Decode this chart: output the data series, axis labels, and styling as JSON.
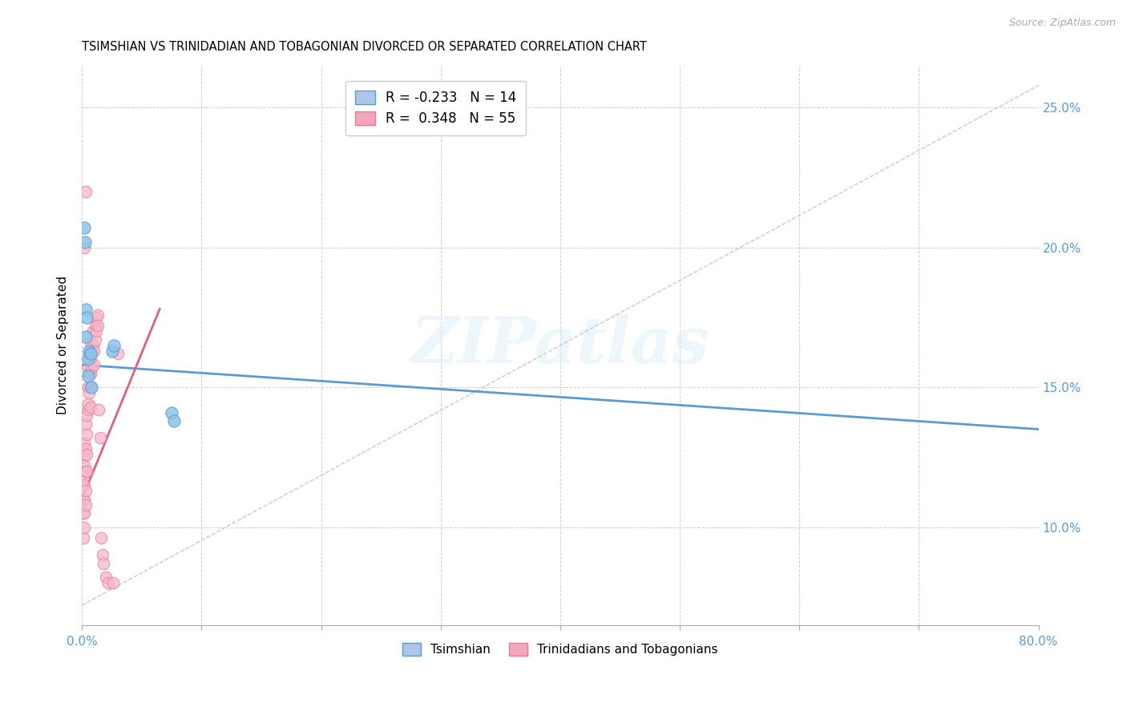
{
  "title": "TSIMSHIAN VS TRINIDADIAN AND TOBAGONIAN DIVORCED OR SEPARATED CORRELATION CHART",
  "source_text": "Source: ZipAtlas.com",
  "watermark": "ZIPatlas",
  "ylabel": "Divorced or Separated",
  "x_left_label": "0.0%",
  "x_right_label": "80.0%",
  "yticklabels": [
    "10.0%",
    "15.0%",
    "20.0%",
    "25.0%"
  ],
  "xlim": [
    0.0,
    0.8
  ],
  "ylim": [
    0.065,
    0.265
  ],
  "legend_entries": [
    {
      "label": "R = -0.233   N = 14",
      "color": "#aec6e8"
    },
    {
      "label": "R =  0.348   N = 55",
      "color": "#f4a7b9"
    }
  ],
  "legend_labels_bottom": [
    "Tsimshian",
    "Trinidadians and Tobagonians"
  ],
  "blue_color": "#8ec4e8",
  "blue_edge_color": "#5b9bd5",
  "pink_color": "#f5b8c8",
  "pink_edge_color": "#e87c9e",
  "blue_scatter_x": [
    0.002,
    0.0025,
    0.003,
    0.004,
    0.005,
    0.005,
    0.006,
    0.007,
    0.003,
    0.008,
    0.025,
    0.027,
    0.075,
    0.077
  ],
  "blue_scatter_y": [
    0.207,
    0.202,
    0.178,
    0.175,
    0.154,
    0.16,
    0.163,
    0.162,
    0.168,
    0.15,
    0.163,
    0.165,
    0.141,
    0.138
  ],
  "pink_scatter_x": [
    0.001,
    0.001,
    0.001,
    0.001,
    0.001,
    0.002,
    0.002,
    0.002,
    0.002,
    0.002,
    0.002,
    0.003,
    0.003,
    0.003,
    0.003,
    0.003,
    0.004,
    0.004,
    0.004,
    0.004,
    0.005,
    0.005,
    0.005,
    0.005,
    0.006,
    0.006,
    0.006,
    0.007,
    0.007,
    0.007,
    0.007,
    0.007,
    0.008,
    0.008,
    0.009,
    0.009,
    0.01,
    0.01,
    0.011,
    0.011,
    0.012,
    0.012,
    0.013,
    0.013,
    0.014,
    0.015,
    0.016,
    0.017,
    0.018,
    0.02,
    0.022,
    0.026,
    0.03,
    0.002,
    0.003
  ],
  "pink_scatter_y": [
    0.125,
    0.118,
    0.11,
    0.105,
    0.096,
    0.13,
    0.122,
    0.115,
    0.11,
    0.105,
    0.1,
    0.137,
    0.128,
    0.12,
    0.113,
    0.108,
    0.14,
    0.133,
    0.126,
    0.12,
    0.142,
    0.157,
    0.15,
    0.144,
    0.162,
    0.155,
    0.148,
    0.166,
    0.16,
    0.155,
    0.15,
    0.143,
    0.162,
    0.157,
    0.17,
    0.165,
    0.163,
    0.158,
    0.172,
    0.167,
    0.175,
    0.17,
    0.176,
    0.172,
    0.142,
    0.132,
    0.096,
    0.09,
    0.087,
    0.082,
    0.08,
    0.08,
    0.162,
    0.2,
    0.22
  ],
  "ref_line_x": [
    0.0,
    0.8
  ],
  "ref_line_y": [
    0.072,
    0.258
  ],
  "blue_trend_x": [
    0.0,
    0.8
  ],
  "blue_trend_y": [
    0.158,
    0.135
  ],
  "pink_trend_x": [
    0.0,
    0.065
  ],
  "pink_trend_y": [
    0.11,
    0.178
  ],
  "num_xticks": 9,
  "ytick_vals": [
    0.1,
    0.15,
    0.2,
    0.25
  ],
  "title_fontsize": 10.5,
  "axis_color": "#5b9bd5",
  "grid_color": "#d0d0d0"
}
